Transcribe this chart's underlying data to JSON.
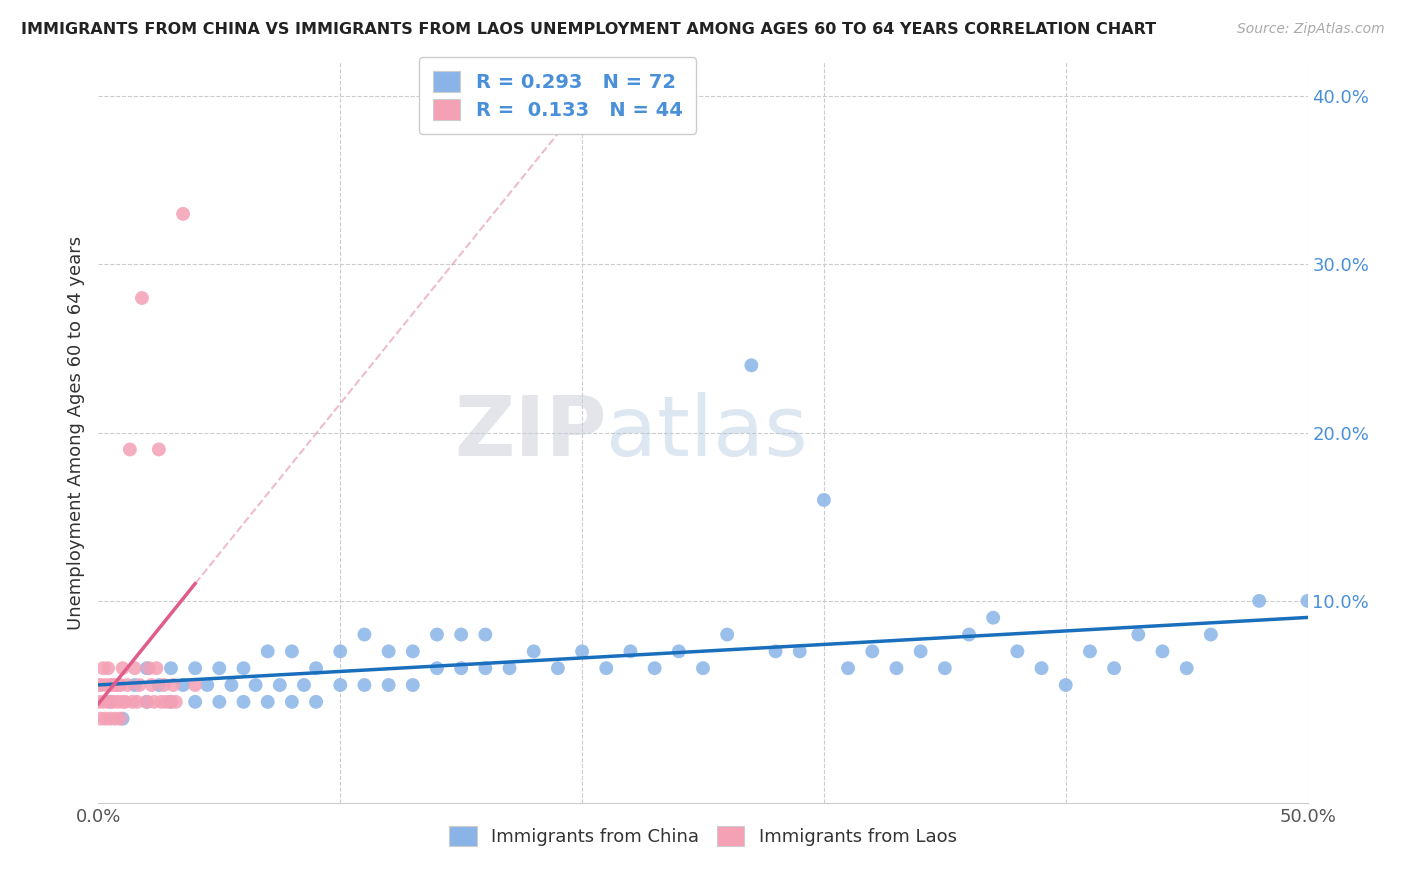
{
  "title": "IMMIGRANTS FROM CHINA VS IMMIGRANTS FROM LAOS UNEMPLOYMENT AMONG AGES 60 TO 64 YEARS CORRELATION CHART",
  "source": "Source: ZipAtlas.com",
  "ylabel": "Unemployment Among Ages 60 to 64 years",
  "xlim": [
    0.0,
    0.5
  ],
  "ylim": [
    -0.02,
    0.42
  ],
  "xticks": [
    0.0,
    0.5
  ],
  "xticklabels": [
    "0.0%",
    "50.0%"
  ],
  "yticks": [
    0.1,
    0.2,
    0.3,
    0.4
  ],
  "yticklabels": [
    "10.0%",
    "20.0%",
    "30.0%",
    "40.0%"
  ],
  "china_color": "#8ab4e8",
  "laos_color": "#f4a0b5",
  "china_line_color": "#1a6fbd",
  "laos_line_color": "#e05c8a",
  "china_R": 0.293,
  "china_N": 72,
  "laos_R": 0.133,
  "laos_N": 44,
  "legend_label_china": "Immigrants from China",
  "legend_label_laos": "Immigrants from Laos",
  "watermark_zip": "ZIP",
  "watermark_atlas": "atlas",
  "china_x": [
    0.005,
    0.01,
    0.015,
    0.02,
    0.02,
    0.025,
    0.03,
    0.03,
    0.035,
    0.04,
    0.04,
    0.045,
    0.05,
    0.05,
    0.055,
    0.06,
    0.06,
    0.065,
    0.07,
    0.07,
    0.075,
    0.08,
    0.08,
    0.085,
    0.09,
    0.09,
    0.1,
    0.1,
    0.11,
    0.11,
    0.12,
    0.12,
    0.13,
    0.13,
    0.14,
    0.14,
    0.15,
    0.15,
    0.16,
    0.16,
    0.17,
    0.18,
    0.19,
    0.2,
    0.21,
    0.22,
    0.23,
    0.24,
    0.25,
    0.26,
    0.27,
    0.28,
    0.29,
    0.3,
    0.31,
    0.32,
    0.33,
    0.34,
    0.35,
    0.36,
    0.37,
    0.38,
    0.39,
    0.4,
    0.41,
    0.42,
    0.43,
    0.44,
    0.45,
    0.46,
    0.48,
    0.5
  ],
  "china_y": [
    0.04,
    0.03,
    0.05,
    0.04,
    0.06,
    0.05,
    0.04,
    0.06,
    0.05,
    0.04,
    0.06,
    0.05,
    0.04,
    0.06,
    0.05,
    0.04,
    0.06,
    0.05,
    0.04,
    0.07,
    0.05,
    0.04,
    0.07,
    0.05,
    0.04,
    0.06,
    0.05,
    0.07,
    0.05,
    0.08,
    0.05,
    0.07,
    0.05,
    0.07,
    0.06,
    0.08,
    0.06,
    0.08,
    0.06,
    0.08,
    0.06,
    0.07,
    0.06,
    0.07,
    0.06,
    0.07,
    0.06,
    0.07,
    0.06,
    0.08,
    0.24,
    0.07,
    0.07,
    0.16,
    0.06,
    0.07,
    0.06,
    0.07,
    0.06,
    0.08,
    0.09,
    0.07,
    0.06,
    0.05,
    0.07,
    0.06,
    0.08,
    0.07,
    0.06,
    0.08,
    0.1,
    0.1
  ],
  "laos_x": [
    0.0,
    0.0,
    0.001,
    0.001,
    0.002,
    0.002,
    0.003,
    0.003,
    0.004,
    0.004,
    0.005,
    0.005,
    0.006,
    0.006,
    0.007,
    0.007,
    0.008,
    0.008,
    0.009,
    0.009,
    0.01,
    0.01,
    0.011,
    0.012,
    0.013,
    0.014,
    0.015,
    0.016,
    0.017,
    0.018,
    0.02,
    0.021,
    0.022,
    0.023,
    0.024,
    0.025,
    0.026,
    0.027,
    0.028,
    0.03,
    0.031,
    0.032,
    0.035,
    0.04
  ],
  "laos_y": [
    0.04,
    0.05,
    0.03,
    0.05,
    0.04,
    0.06,
    0.03,
    0.05,
    0.04,
    0.06,
    0.03,
    0.05,
    0.04,
    0.05,
    0.03,
    0.05,
    0.04,
    0.05,
    0.03,
    0.05,
    0.04,
    0.06,
    0.04,
    0.05,
    0.19,
    0.04,
    0.06,
    0.04,
    0.05,
    0.28,
    0.04,
    0.06,
    0.05,
    0.04,
    0.06,
    0.19,
    0.04,
    0.05,
    0.04,
    0.04,
    0.05,
    0.04,
    0.33,
    0.05
  ]
}
